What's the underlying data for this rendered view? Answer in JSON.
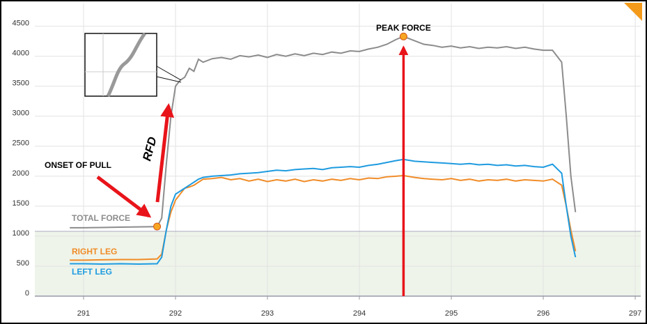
{
  "chart_data": {
    "type": "line",
    "x": [
      290.85,
      291.0,
      291.2,
      291.4,
      291.6,
      291.8,
      291.85,
      291.9,
      291.95,
      292.0,
      292.05,
      292.1,
      292.15,
      292.2,
      292.25,
      292.3,
      292.4,
      292.5,
      292.6,
      292.7,
      292.8,
      292.9,
      293.0,
      293.1,
      293.2,
      293.3,
      293.4,
      293.5,
      293.6,
      293.7,
      293.8,
      293.9,
      294.0,
      294.1,
      294.2,
      294.3,
      294.4,
      294.48,
      294.6,
      294.7,
      294.8,
      294.9,
      295.0,
      295.1,
      295.2,
      295.3,
      295.4,
      295.5,
      295.6,
      295.7,
      295.8,
      295.9,
      296.0,
      296.1,
      296.2,
      296.25,
      296.3,
      296.35
    ],
    "series": [
      {
        "name": "TOTAL FORCE",
        "color": "#8c8c8c",
        "values": [
          1140,
          1140,
          1145,
          1150,
          1155,
          1160,
          1300,
          2200,
          3000,
          3500,
          3600,
          3650,
          3800,
          3750,
          3950,
          3900,
          3960,
          3980,
          3950,
          4010,
          3990,
          4020,
          3980,
          4030,
          4000,
          4040,
          4010,
          4050,
          4030,
          4070,
          4050,
          4090,
          4080,
          4120,
          4150,
          4200,
          4280,
          4330,
          4260,
          4200,
          4180,
          4150,
          4170,
          4140,
          4160,
          4130,
          4150,
          4140,
          4160,
          4130,
          4150,
          4120,
          4100,
          4100,
          3900,
          3000,
          2000,
          1400
        ]
      },
      {
        "name": "RIGHT LEG",
        "color": "#f08c28",
        "values": [
          600,
          600,
          605,
          610,
          610,
          620,
          700,
          1100,
          1400,
          1600,
          1700,
          1800,
          1820,
          1850,
          1900,
          1950,
          1960,
          1980,
          1940,
          1960,
          1920,
          1950,
          1910,
          1940,
          1920,
          1950,
          1910,
          1940,
          1920,
          1950,
          1930,
          1960,
          1940,
          1970,
          1960,
          1990,
          2000,
          2010,
          1980,
          1960,
          1950,
          1940,
          1960,
          1930,
          1950,
          1920,
          1940,
          1930,
          1950,
          1920,
          1940,
          1930,
          1920,
          1950,
          1850,
          1500,
          1100,
          750
        ]
      },
      {
        "name": "LEFT LEG",
        "color": "#1e9be0",
        "values": [
          540,
          540,
          535,
          540,
          535,
          540,
          650,
          1100,
          1500,
          1700,
          1750,
          1800,
          1850,
          1900,
          1950,
          1980,
          2000,
          2010,
          2020,
          2040,
          2050,
          2060,
          2080,
          2100,
          2090,
          2110,
          2120,
          2130,
          2110,
          2140,
          2150,
          2160,
          2150,
          2180,
          2200,
          2230,
          2260,
          2280,
          2250,
          2240,
          2230,
          2220,
          2210,
          2200,
          2210,
          2190,
          2200,
          2180,
          2190,
          2170,
          2180,
          2160,
          2150,
          2200,
          2050,
          1500,
          1000,
          650
        ]
      }
    ],
    "threshold": 1080,
    "annotations": [
      "ONSET OF PULL",
      "PEAK FORCE",
      "RFD"
    ],
    "xlim": [
      290.47,
      297.06
    ],
    "xticks": [
      291,
      292,
      293,
      294,
      295,
      296,
      297
    ],
    "ylim": [
      0,
      4880
    ],
    "yticks": [
      0,
      500,
      1000,
      1500,
      2000,
      2500,
      3000,
      3500,
      4000,
      4500
    ],
    "grid": true
  }
}
